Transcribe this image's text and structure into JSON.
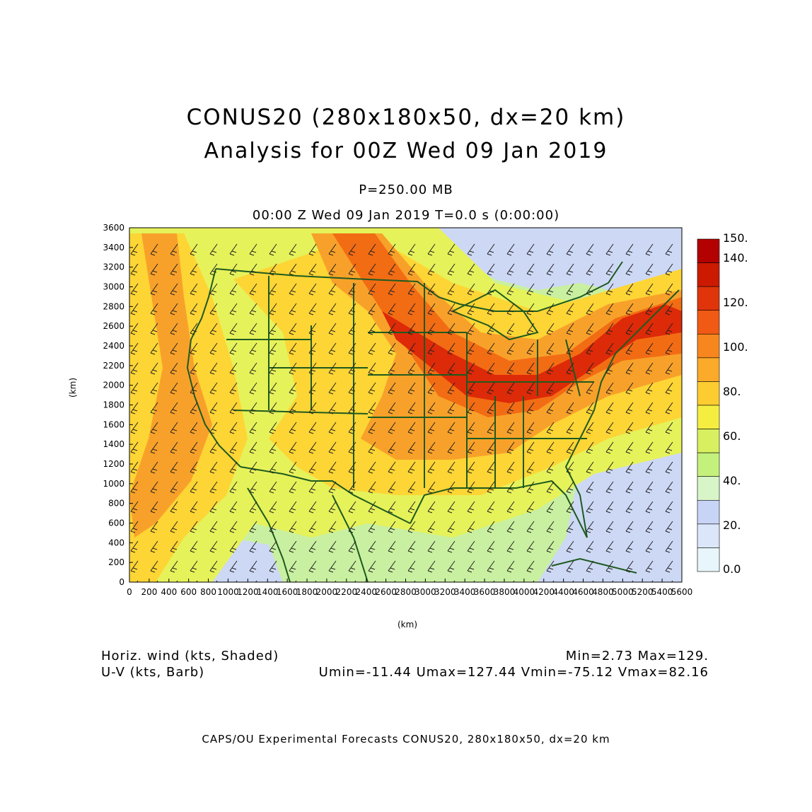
{
  "title": {
    "line1": "CONUS20 (280x180x50, dx=20 km)",
    "line2": "Analysis for 00Z Wed 09 Jan 2019"
  },
  "level": "P=250.00 MB",
  "time_line": "00:00 Z Wed 09 Jan 2019    T=0.0 s (0:00:00)",
  "axes": {
    "xlabel": "(km)",
    "ylabel": "(km)",
    "x_ticks": [
      "0",
      "200",
      "400",
      "600",
      "800",
      "1000",
      "1200",
      "1400",
      "1600",
      "1800",
      "2000",
      "2200",
      "2400",
      "2600",
      "2800",
      "3000",
      "3200",
      "3400",
      "3600",
      "3800",
      "4000",
      "4200",
      "4400",
      "4600",
      "4800",
      "5000",
      "5200",
      "5400",
      "5600"
    ],
    "y_ticks": [
      "0",
      "200",
      "400",
      "600",
      "800",
      "1000",
      "1200",
      "1400",
      "1600",
      "1800",
      "2000",
      "2200",
      "2400",
      "2600",
      "2800",
      "3000",
      "3200",
      "3400",
      "3600"
    ],
    "xlim": [
      0,
      5600
    ],
    "ylim": [
      0,
      3600
    ]
  },
  "colorbar": {
    "labels": [
      "150.",
      "140.",
      "120.",
      "100.",
      "80.",
      "60.",
      "40.",
      "20.",
      "0.0"
    ],
    "colors": [
      "#b30000",
      "#cc1a00",
      "#e0350a",
      "#f05a14",
      "#f7861f",
      "#fbaa2a",
      "#fdcc30",
      "#f5ee40",
      "#d8f060",
      "#c4f07c",
      "#d8f5c8",
      "#c8d4f5",
      "#dbe6fa",
      "#e8f6fb"
    ]
  },
  "stats": {
    "field1": "Horiz. wind (kts, Shaded)",
    "field2": "U-V (kts, Barb)",
    "minmax": "Min=2.73 Max=129.",
    "uv_minmax": "Umin=-11.44 Umax=127.44 Vmin=-75.12 Vmax=82.16"
  },
  "credit": "CAPS/OU Experimental Forecasts  CONUS20, 280x180x50, dx=20 km",
  "map_colors": {
    "border": "#1e5a1e",
    "jet_core": "#dd2a08",
    "jet": "#f26c14",
    "strong": "#f8a12a",
    "moderate": "#fdd535",
    "light": "#e6f25a",
    "weak": "#c9f0a0",
    "calm": "#cdd8f5"
  }
}
